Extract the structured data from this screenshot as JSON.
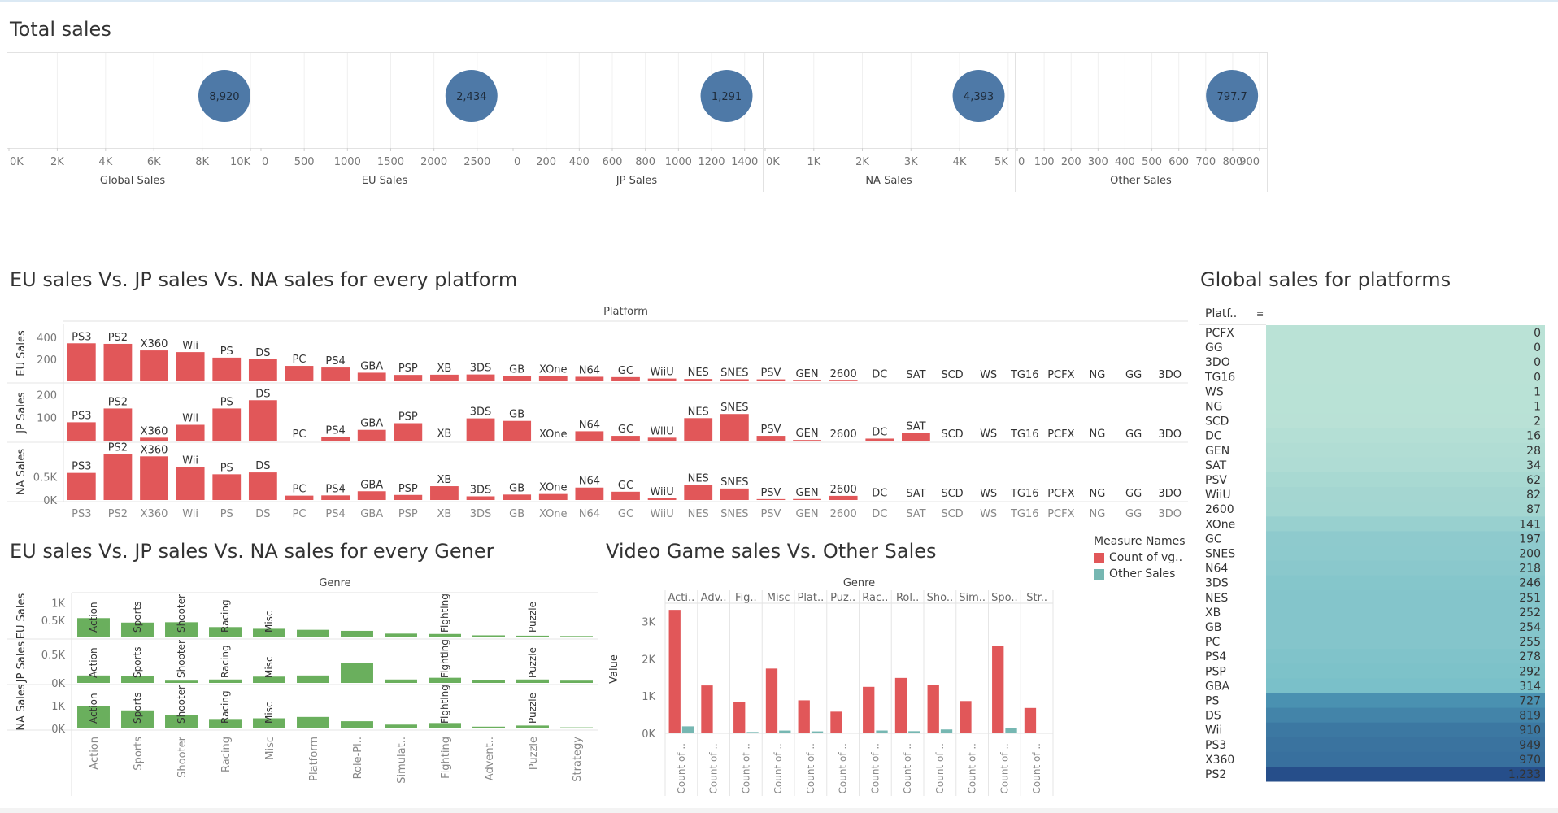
{
  "titles": {
    "total_sales": "Total sales",
    "platform_compare": "EU sales Vs. JP sales Vs. NA sales for every platform",
    "global_platforms": "Global sales for platforms",
    "genre_compare": "EU sales Vs. JP sales Vs. NA sales for every Gener",
    "video_vs_other": "Video Game sales Vs. Other Sales"
  },
  "colors": {
    "bubble": "#4e79a7",
    "red": "#e15759",
    "green": "#6aaf5d",
    "teal": "#76b7b2"
  },
  "chart_data": [
    {
      "type": "scatter",
      "name": "Total sales",
      "panels": [
        {
          "label": "Global Sales",
          "value": 8920,
          "value_label": "8,920",
          "ticks": [
            "0K",
            "2K",
            "4K",
            "6K",
            "8K",
            "10K"
          ],
          "xlim": [
            0,
            10200
          ]
        },
        {
          "label": "EU Sales",
          "value": 2434,
          "value_label": "2,434",
          "ticks": [
            "0",
            "500",
            "1000",
            "1500",
            "2000",
            "2500"
          ],
          "xlim": [
            0,
            2850
          ]
        },
        {
          "label": "JP Sales",
          "value": 1291,
          "value_label": "1,291",
          "ticks": [
            "0",
            "200",
            "400",
            "600",
            "800",
            "1000",
            "1200",
            "1400"
          ],
          "xlim": [
            0,
            1490
          ]
        },
        {
          "label": "NA Sales",
          "value": 4393,
          "value_label": "4,393",
          "ticks": [
            "0K",
            "1K",
            "2K",
            "3K",
            "4K",
            "5K"
          ],
          "xlim": [
            0,
            5070
          ]
        },
        {
          "label": "Other Sales",
          "value": 797.7,
          "value_label": "797.7",
          "ticks": [
            "0",
            "100",
            "200",
            "300",
            "400",
            "500",
            "600",
            "700",
            "800",
            "900"
          ],
          "xlim": [
            0,
            915
          ]
        }
      ]
    },
    {
      "type": "bar",
      "name": "EU sales Vs. JP sales Vs. NA sales for every platform",
      "header": "Platform",
      "categories": [
        "PS3",
        "PS2",
        "X360",
        "Wii",
        "PS",
        "DS",
        "PC",
        "PS4",
        "GBA",
        "PSP",
        "XB",
        "3DS",
        "GB",
        "XOne",
        "N64",
        "GC",
        "WiiU",
        "NES",
        "SNES",
        "PSV",
        "GEN",
        "2600",
        "DC",
        "SAT",
        "SCD",
        "WS",
        "TG16",
        "PCFX",
        "NG",
        "GG",
        "3DO"
      ],
      "rows": [
        {
          "label": "EU Sales",
          "ticks": [
            "400",
            "200"
          ],
          "tick_values": [
            400,
            200
          ],
          "ylim": [
            0,
            480
          ],
          "values": [
            345,
            340,
            280,
            265,
            215,
            200,
            140,
            125,
            78,
            58,
            60,
            62,
            48,
            48,
            41,
            38,
            25,
            21,
            19,
            18,
            6,
            6,
            2,
            1,
            0,
            0,
            0,
            0,
            0,
            0,
            0
          ]
        },
        {
          "label": "JP Sales",
          "ticks": [
            "200",
            "100"
          ],
          "tick_values": [
            200,
            100
          ],
          "ylim": [
            0,
            230
          ],
          "values": [
            80,
            140,
            13,
            69,
            140,
            176,
            0,
            16,
            47,
            76,
            1,
            97,
            86,
            0,
            41,
            21,
            13,
            98,
            116,
            21,
            3,
            0,
            9,
            33,
            0,
            1,
            0,
            0,
            1,
            0,
            0
          ]
        },
        {
          "label": "NA Sales",
          "ticks": [
            "0.5K",
            "0K"
          ],
          "tick_values": [
            500,
            0
          ],
          "ylim": [
            0,
            1150
          ],
          "values": [
            590,
            1000,
            950,
            720,
            560,
            600,
            95,
            100,
            190,
            110,
            300,
            80,
            118,
            130,
            270,
            180,
            38,
            330,
            250,
            20,
            22,
            90,
            5,
            1,
            1,
            0,
            0,
            0,
            0,
            0,
            0
          ]
        }
      ]
    },
    {
      "type": "heatmap",
      "name": "Global sales for platforms",
      "header": "Platf..",
      "categories": [
        "PCFX",
        "GG",
        "3DO",
        "TG16",
        "WS",
        "NG",
        "SCD",
        "DC",
        "GEN",
        "SAT",
        "PSV",
        "WiiU",
        "2600",
        "XOne",
        "GC",
        "SNES",
        "N64",
        "3DS",
        "NES",
        "XB",
        "GB",
        "PC",
        "PS4",
        "PSP",
        "GBA",
        "PS",
        "DS",
        "Wii",
        "PS3",
        "X360",
        "PS2"
      ],
      "values": [
        0,
        0,
        0,
        0,
        1,
        1,
        2,
        16,
        28,
        34,
        62,
        82,
        87,
        141,
        197,
        200,
        218,
        246,
        251,
        252,
        254,
        255,
        278,
        292,
        314,
        727,
        819,
        910,
        949,
        970,
        1233
      ],
      "labels": [
        "0",
        "0",
        "0",
        "0",
        "1",
        "1",
        "2",
        "16",
        "28",
        "34",
        "62",
        "82",
        "87",
        "141",
        "197",
        "200",
        "218",
        "246",
        "251",
        "252",
        "254",
        "255",
        "278",
        "292",
        "314",
        "727",
        "819",
        "910",
        "949",
        "970",
        "1,233"
      ]
    },
    {
      "type": "bar",
      "name": "EU sales Vs. JP sales Vs. NA sales for every Gener",
      "header": "Genre",
      "categories": [
        "Action",
        "Sports",
        "Shooter",
        "Racing",
        "Misc",
        "Platform",
        "Role-Pl..",
        "Simulat..",
        "Fighting",
        "Advent..",
        "Puzzle",
        "Strategy"
      ],
      "inner_labels": [
        "Action",
        "Sports",
        "Shooter",
        "Racing",
        "Misc",
        "",
        "",
        "",
        "Fighting",
        "",
        "Puzzle",
        ""
      ],
      "rows": [
        {
          "label": "EU Sales",
          "ticks": [
            "1K",
            "0.5K"
          ],
          "tick_values": [
            1000,
            500
          ],
          "ylim": [
            0,
            1180
          ],
          "values": [
            560,
            430,
            440,
            300,
            250,
            220,
            190,
            110,
            100,
            60,
            50,
            40
          ]
        },
        {
          "label": "JP Sales",
          "ticks": [
            "0.5K",
            "0K"
          ],
          "tick_values": [
            500,
            0
          ],
          "ylim": [
            0,
            710
          ],
          "values": [
            130,
            120,
            40,
            60,
            110,
            130,
            350,
            60,
            90,
            50,
            60,
            40
          ]
        },
        {
          "label": "NA Sales",
          "ticks": [
            "1K",
            "0K"
          ],
          "tick_values": [
            1000,
            0
          ],
          "ylim": [
            0,
            1800
          ],
          "values": [
            1000,
            800,
            610,
            420,
            450,
            510,
            320,
            170,
            240,
            80,
            130,
            50
          ]
        }
      ]
    },
    {
      "type": "bar",
      "name": "Video Game sales Vs. Other Sales",
      "header": "Genre",
      "categories": [
        "Acti..",
        "Adv..",
        "Fig..",
        "Misc",
        "Plat..",
        "Puz..",
        "Rac..",
        "Rol..",
        "Sho..",
        "Sim..",
        "Spo..",
        "Str.."
      ],
      "x_labels": [
        "Count of ..",
        "Count of ..",
        "Count of ..",
        "Count of ..",
        "Count of ..",
        "Count of ..",
        "Count of ..",
        "Count of ..",
        "Count of ..",
        "Count of ..",
        "Count of ..",
        "Count of .."
      ],
      "ylabel": "Value",
      "ticks": [
        "3K",
        "2K",
        "1K",
        "0K"
      ],
      "tick_values": [
        3000,
        2000,
        1000,
        0
      ],
      "ylim": [
        0,
        3450
      ],
      "series": [
        {
          "name": "Count of vg..",
          "values": [
            3316,
            1286,
            848,
            1739,
            886,
            582,
            1249,
            1488,
            1310,
            867,
            2346,
            681
          ]
        },
        {
          "name": "Other Sales",
          "values": [
            188,
            17,
            37,
            75,
            53,
            12,
            76,
            58,
            104,
            21,
            135,
            11
          ]
        }
      ]
    }
  ],
  "legend": {
    "title": "Measure Names",
    "items": [
      {
        "label": "Count of vg.."
      },
      {
        "label": "Other Sales"
      }
    ]
  }
}
